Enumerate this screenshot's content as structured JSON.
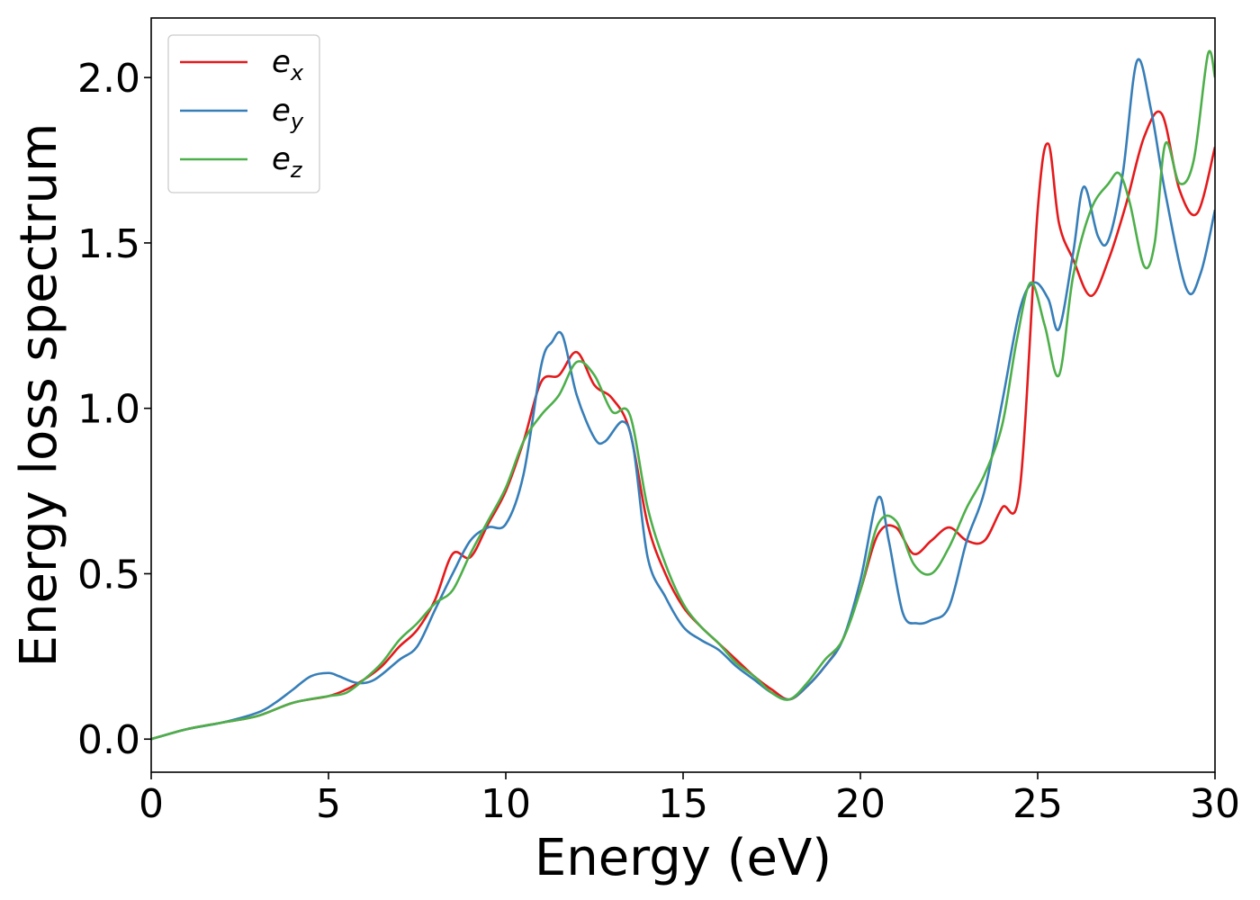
{
  "chart_data": {
    "type": "line",
    "title": "",
    "xlabel": "Energy (eV)",
    "ylabel": "Energy loss spectrum",
    "xlim": [
      0,
      30
    ],
    "ylim": [
      -0.1,
      2.18
    ],
    "xticks": [
      0,
      5,
      10,
      15,
      20,
      25,
      30
    ],
    "xtick_labels": [
      "0",
      "5",
      "10",
      "15",
      "20",
      "25",
      "30"
    ],
    "yticks": [
      0.0,
      0.5,
      1.0,
      1.5,
      2.0
    ],
    "ytick_labels": [
      "0.0",
      "0.5",
      "1.0",
      "1.5",
      "2.0"
    ],
    "grid": false,
    "legend_position": "top-left",
    "series": [
      {
        "name": "e_x",
        "label_base": "e",
        "label_sub": "x",
        "color": "#e41a1c",
        "x": [
          0,
          1,
          2,
          3,
          4,
          5,
          5.5,
          6,
          6.5,
          7,
          7.5,
          8,
          8.5,
          9,
          9.5,
          10,
          10.5,
          11,
          11.5,
          12,
          12.5,
          13,
          13.5,
          14,
          14.5,
          15,
          15.5,
          16,
          16.5,
          17,
          17.5,
          18,
          18.5,
          19,
          19.5,
          20,
          20.5,
          21,
          21.5,
          22,
          22.5,
          23,
          23.5,
          24,
          24.5,
          25,
          25.3,
          25.6,
          26,
          26.5,
          27,
          27.5,
          28,
          28.5,
          29,
          29.5,
          30
        ],
        "y": [
          0.0,
          0.03,
          0.05,
          0.07,
          0.11,
          0.13,
          0.15,
          0.18,
          0.22,
          0.28,
          0.33,
          0.42,
          0.56,
          0.55,
          0.65,
          0.75,
          0.9,
          1.08,
          1.1,
          1.17,
          1.07,
          1.03,
          0.93,
          0.65,
          0.5,
          0.4,
          0.34,
          0.29,
          0.24,
          0.19,
          0.15,
          0.12,
          0.16,
          0.22,
          0.3,
          0.45,
          0.62,
          0.64,
          0.56,
          0.6,
          0.64,
          0.6,
          0.6,
          0.7,
          0.76,
          1.6,
          1.8,
          1.56,
          1.45,
          1.34,
          1.45,
          1.62,
          1.82,
          1.89,
          1.66,
          1.59,
          1.79
        ]
      },
      {
        "name": "e_y",
        "label_base": "e",
        "label_sub": "y",
        "color": "#377eb8",
        "x": [
          0,
          1,
          2,
          3,
          3.5,
          4,
          4.5,
          5,
          5.3,
          5.8,
          6.3,
          7,
          7.5,
          8,
          8.5,
          9,
          9.5,
          10,
          10.5,
          11,
          11.3,
          11.6,
          12,
          12.5,
          12.8,
          13.3,
          13.6,
          14,
          14.5,
          15,
          15.5,
          16,
          16.5,
          17,
          17.5,
          18,
          18.5,
          19,
          19.5,
          20,
          20.5,
          20.8,
          21.2,
          21.6,
          22,
          22.5,
          23,
          23.5,
          24,
          24.5,
          24.9,
          25.3,
          25.6,
          26,
          26.3,
          26.7,
          27,
          27.4,
          27.8,
          28.2,
          28.6,
          29.2,
          29.6,
          30
        ],
        "y": [
          0.0,
          0.03,
          0.05,
          0.08,
          0.11,
          0.15,
          0.19,
          0.2,
          0.19,
          0.17,
          0.18,
          0.24,
          0.28,
          0.39,
          0.5,
          0.6,
          0.64,
          0.65,
          0.8,
          1.13,
          1.2,
          1.22,
          1.04,
          0.91,
          0.9,
          0.96,
          0.88,
          0.55,
          0.43,
          0.34,
          0.3,
          0.27,
          0.22,
          0.18,
          0.14,
          0.12,
          0.16,
          0.22,
          0.3,
          0.48,
          0.73,
          0.6,
          0.38,
          0.35,
          0.36,
          0.4,
          0.6,
          0.75,
          1.02,
          1.3,
          1.38,
          1.33,
          1.24,
          1.47,
          1.67,
          1.52,
          1.51,
          1.71,
          2.05,
          1.9,
          1.65,
          1.36,
          1.41,
          1.6
        ]
      },
      {
        "name": "e_z",
        "label_base": "e",
        "label_sub": "z",
        "color": "#4daf4a",
        "x": [
          0,
          1,
          2,
          3,
          4,
          5,
          5.5,
          6,
          6.5,
          7,
          7.5,
          8,
          8.5,
          9,
          9.5,
          10,
          10.5,
          11,
          11.5,
          12,
          12.5,
          13,
          13.5,
          14,
          14.5,
          15,
          15.5,
          16,
          16.5,
          17,
          17.5,
          18,
          18.5,
          19,
          19.5,
          20,
          20.5,
          21,
          21.5,
          22,
          22.5,
          23,
          23.5,
          24,
          24.4,
          24.8,
          25.2,
          25.6,
          26,
          26.5,
          27,
          27.3,
          27.6,
          28,
          28.3,
          28.6,
          29,
          29.4,
          29.8,
          30
        ],
        "y": [
          0.0,
          0.03,
          0.05,
          0.07,
          0.11,
          0.13,
          0.14,
          0.18,
          0.23,
          0.3,
          0.35,
          0.41,
          0.45,
          0.56,
          0.66,
          0.76,
          0.9,
          0.98,
          1.04,
          1.14,
          1.1,
          0.99,
          0.98,
          0.7,
          0.53,
          0.41,
          0.34,
          0.29,
          0.23,
          0.19,
          0.14,
          0.12,
          0.17,
          0.24,
          0.3,
          0.45,
          0.65,
          0.66,
          0.53,
          0.5,
          0.58,
          0.7,
          0.8,
          0.95,
          1.2,
          1.38,
          1.25,
          1.1,
          1.4,
          1.6,
          1.68,
          1.71,
          1.62,
          1.43,
          1.5,
          1.8,
          1.68,
          1.75,
          2.07,
          2.0
        ]
      }
    ]
  }
}
